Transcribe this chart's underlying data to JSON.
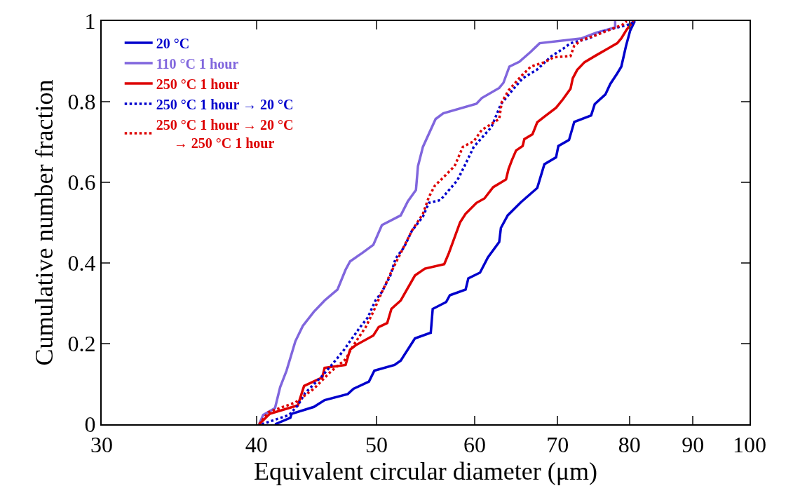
{
  "chart_data": {
    "type": "line",
    "xlabel": "Equivalent circular diameter (μm)",
    "ylabel": "Cumulative number fraction",
    "log": "x",
    "xlim": [
      30,
      100
    ],
    "xticks": [
      30,
      40,
      50,
      60,
      70,
      80,
      90,
      100
    ],
    "ylim": [
      0,
      1
    ],
    "yticks": [
      0,
      0.2,
      0.4,
      0.6,
      0.8,
      1
    ],
    "legend": "top left",
    "marker": "none",
    "series": [
      {
        "name": "20 °C",
        "color": "#0000cc",
        "line_style": "solid",
        "x": [
          41.4,
          42.6,
          42.7,
          44.5,
          45.4,
          47.4,
          47.9,
          49.3,
          49.8,
          51.7,
          52.3,
          53.7,
          55.3,
          55.5,
          56.9,
          57.3,
          59.0,
          59.3,
          60.6,
          61.5,
          62.8,
          63.0,
          63.8,
          65.4,
          67.4,
          68.3,
          69.8,
          70.1,
          71.5,
          72.2,
          74.5,
          75.0,
          76.5,
          77.2,
          78.2,
          78.8,
          79.5,
          80.1,
          80.8
        ],
        "values": [
          0,
          0.016,
          0.026,
          0.043,
          0.06,
          0.075,
          0.088,
          0.106,
          0.133,
          0.147,
          0.158,
          0.213,
          0.227,
          0.286,
          0.303,
          0.32,
          0.334,
          0.362,
          0.376,
          0.414,
          0.452,
          0.487,
          0.518,
          0.551,
          0.586,
          0.645,
          0.662,
          0.69,
          0.705,
          0.75,
          0.766,
          0.794,
          0.818,
          0.844,
          0.87,
          0.887,
          0.939,
          0.976,
          1
        ]
      },
      {
        "name": "110 °C 1 hour",
        "color": "#8066dd",
        "line_style": "solid",
        "x": [
          40.2,
          40.5,
          41.4,
          41.8,
          42.3,
          43.0,
          43.6,
          44.5,
          45.4,
          46.5,
          47.2,
          47.6,
          48.7,
          49.7,
          50.5,
          52.3,
          53.0,
          53.8,
          54.0,
          54.5,
          55.8,
          56.6,
          60.2,
          60.8,
          62.8,
          63.3,
          64.0,
          65.2,
          66.6,
          67.7,
          73.2,
          75.2,
          77.9,
          77.9
        ],
        "values": [
          0,
          0.023,
          0.04,
          0.092,
          0.133,
          0.206,
          0.244,
          0.279,
          0.307,
          0.334,
          0.383,
          0.404,
          0.425,
          0.445,
          0.494,
          0.518,
          0.553,
          0.581,
          0.64,
          0.688,
          0.757,
          0.771,
          0.795,
          0.809,
          0.834,
          0.847,
          0.887,
          0.899,
          0.924,
          0.945,
          0.957,
          0.971,
          0.984,
          1
        ]
      },
      {
        "name": "250 °C 1 hour",
        "color": "#dd0000",
        "line_style": "solid",
        "x": [
          40.2,
          41.0,
          43.2,
          43.7,
          45.2,
          45.4,
          47.2,
          47.6,
          48.1,
          49.7,
          50.2,
          51.0,
          51.4,
          52.3,
          53.7,
          54.7,
          56.7,
          57.2,
          58.4,
          59.0,
          60.2,
          61.1,
          62.1,
          63.6,
          63.9,
          64.3,
          64.8,
          65.6,
          65.8,
          66.8,
          67.4,
          68.3,
          69.8,
          70.7,
          71.7,
          72.0,
          72.6,
          73.6,
          75.2,
          76.9,
          78.2,
          78.8,
          79.6,
          80.6
        ],
        "values": [
          0,
          0.026,
          0.047,
          0.095,
          0.116,
          0.14,
          0.147,
          0.185,
          0.196,
          0.22,
          0.241,
          0.251,
          0.286,
          0.307,
          0.369,
          0.386,
          0.397,
          0.425,
          0.501,
          0.522,
          0.549,
          0.56,
          0.588,
          0.607,
          0.633,
          0.655,
          0.679,
          0.69,
          0.707,
          0.719,
          0.749,
          0.763,
          0.785,
          0.806,
          0.832,
          0.858,
          0.879,
          0.898,
          0.915,
          0.932,
          0.945,
          0.957,
          0.979,
          1
        ]
      },
      {
        "name": "250 °C 1 hour → 20 °C",
        "color": "#0000cc",
        "line_style": "dotted",
        "x": [
          40.4,
          41.2,
          42.5,
          43.2,
          43.8,
          45.2,
          46.2,
          47.0,
          47.6,
          48.5,
          49.2,
          49.9,
          50.5,
          51.3,
          51.8,
          52.6,
          53.4,
          54.5,
          55.1,
          56.3,
          58.1,
          59.0,
          59.9,
          61.9,
          63.0,
          64.3,
          65.6,
          67.4,
          69.2,
          70.7,
          71.7,
          74.2,
          76.2,
          78.2,
          80.3,
          80.6
        ],
        "values": [
          0,
          0.009,
          0.023,
          0.047,
          0.078,
          0.12,
          0.154,
          0.182,
          0.206,
          0.241,
          0.265,
          0.307,
          0.328,
          0.369,
          0.411,
          0.438,
          0.48,
          0.515,
          0.549,
          0.556,
          0.605,
          0.646,
          0.688,
          0.737,
          0.794,
          0.827,
          0.858,
          0.88,
          0.913,
          0.931,
          0.945,
          0.957,
          0.974,
          0.984,
          0.993,
          1
        ]
      },
      {
        "name": "250 °C 1 hour → 20 °C\n  → 250 °C 1 hour",
        "color": "#dd0000",
        "line_style": "dotted",
        "x": [
          40.2,
          40.9,
          43.0,
          44.5,
          45.9,
          47.2,
          47.9,
          49.0,
          49.7,
          50.5,
          51.3,
          52.3,
          53.4,
          54.5,
          55.1,
          55.7,
          56.9,
          57.8,
          58.7,
          59.9,
          60.8,
          62.8,
          63.1,
          63.9,
          65.4,
          66.6,
          68.3,
          69.5,
          71.7,
          72.2,
          73.2,
          75.2,
          77.2,
          79.0,
          79.6
        ],
        "values": [
          0,
          0.03,
          0.054,
          0.088,
          0.13,
          0.161,
          0.196,
          0.241,
          0.279,
          0.328,
          0.373,
          0.425,
          0.48,
          0.522,
          0.563,
          0.591,
          0.619,
          0.64,
          0.688,
          0.702,
          0.73,
          0.757,
          0.799,
          0.828,
          0.863,
          0.887,
          0.898,
          0.91,
          0.913,
          0.939,
          0.953,
          0.965,
          0.979,
          0.991,
          1
        ]
      }
    ]
  }
}
